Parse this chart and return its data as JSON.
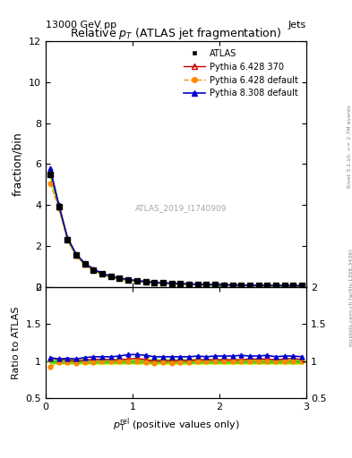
{
  "title": "Relative $p_T$ (ATLAS jet fragmentation)",
  "header_left": "13000 GeV pp",
  "header_right": "Jets",
  "ylabel_main": "fraction/bin",
  "ylabel_ratio": "Ratio to ATLAS",
  "watermark": "ATLAS_2019_I1740909",
  "right_label": "Rivet 3.1.10, >= 2.7M events",
  "arxiv_label": "mcplots.cern.ch [arXiv:1306.3436]",
  "x_main": [
    0.05,
    0.15,
    0.25,
    0.35,
    0.45,
    0.55,
    0.65,
    0.75,
    0.85,
    0.95,
    1.05,
    1.15,
    1.25,
    1.35,
    1.45,
    1.55,
    1.65,
    1.75,
    1.85,
    1.95,
    2.05,
    2.15,
    2.25,
    2.35,
    2.45,
    2.55,
    2.65,
    2.75,
    2.85,
    2.95
  ],
  "atlas_y": [
    5.5,
    3.9,
    2.3,
    1.55,
    1.1,
    0.82,
    0.62,
    0.49,
    0.4,
    0.33,
    0.28,
    0.24,
    0.21,
    0.185,
    0.165,
    0.148,
    0.133,
    0.12,
    0.11,
    0.1,
    0.092,
    0.085,
    0.079,
    0.074,
    0.069,
    0.065,
    0.062,
    0.058,
    0.055,
    0.053
  ],
  "pythia6_370_y": [
    5.7,
    4.0,
    2.35,
    1.55,
    1.12,
    0.84,
    0.64,
    0.5,
    0.41,
    0.34,
    0.29,
    0.245,
    0.21,
    0.187,
    0.167,
    0.15,
    0.135,
    0.122,
    0.112,
    0.102,
    0.094,
    0.087,
    0.081,
    0.076,
    0.071,
    0.067,
    0.063,
    0.06,
    0.057,
    0.054
  ],
  "pythia6_def_y": [
    5.05,
    3.85,
    2.28,
    1.52,
    1.09,
    0.81,
    0.62,
    0.49,
    0.4,
    0.33,
    0.28,
    0.238,
    0.205,
    0.182,
    0.162,
    0.146,
    0.132,
    0.12,
    0.11,
    0.1,
    0.092,
    0.085,
    0.079,
    0.074,
    0.069,
    0.065,
    0.062,
    0.058,
    0.055,
    0.053
  ],
  "pythia8_def_y": [
    5.8,
    4.0,
    2.4,
    1.6,
    1.15,
    0.87,
    0.66,
    0.52,
    0.43,
    0.36,
    0.305,
    0.258,
    0.222,
    0.196,
    0.175,
    0.157,
    0.141,
    0.128,
    0.117,
    0.107,
    0.098,
    0.091,
    0.085,
    0.079,
    0.074,
    0.07,
    0.066,
    0.062,
    0.059,
    0.056
  ],
  "ratio_p6_370": [
    1.04,
    1.03,
    1.02,
    1.0,
    1.02,
    1.02,
    1.03,
    1.02,
    1.02,
    1.03,
    1.04,
    1.02,
    1.0,
    1.01,
    1.01,
    1.01,
    1.01,
    1.02,
    1.02,
    1.02,
    1.02,
    1.02,
    1.02,
    1.03,
    1.03,
    1.03,
    1.02,
    1.03,
    1.04,
    1.02
  ],
  "ratio_p6_def": [
    0.92,
    0.99,
    0.99,
    0.98,
    0.99,
    0.99,
    1.0,
    1.0,
    1.0,
    1.0,
    1.0,
    0.99,
    0.98,
    0.99,
    0.98,
    0.99,
    0.99,
    1.0,
    1.0,
    1.0,
    1.0,
    1.0,
    1.0,
    1.0,
    1.0,
    1.0,
    1.0,
    1.0,
    1.0,
    1.0
  ],
  "ratio_p8_def": [
    1.05,
    1.03,
    1.04,
    1.03,
    1.05,
    1.06,
    1.06,
    1.06,
    1.07,
    1.09,
    1.09,
    1.08,
    1.06,
    1.06,
    1.06,
    1.06,
    1.06,
    1.07,
    1.06,
    1.07,
    1.07,
    1.07,
    1.08,
    1.07,
    1.07,
    1.08,
    1.06,
    1.07,
    1.07,
    1.06
  ],
  "atlas_color": "black",
  "p6_370_color": "#cc0000",
  "p6_def_color": "#ff8800",
  "p8_def_color": "#0000cc",
  "band_color_yellow": "#ffff00",
  "band_color_green": "#00cc00",
  "main_ylim": [
    0,
    12
  ],
  "ratio_ylim": [
    0.5,
    2.0
  ],
  "xlim": [
    0,
    3.0
  ],
  "main_yticks": [
    0,
    2,
    4,
    6,
    8,
    10,
    12
  ],
  "ratio_yticks": [
    0.5,
    1.0,
    1.5,
    2.0
  ],
  "xticks": [
    0,
    1,
    2,
    3
  ]
}
